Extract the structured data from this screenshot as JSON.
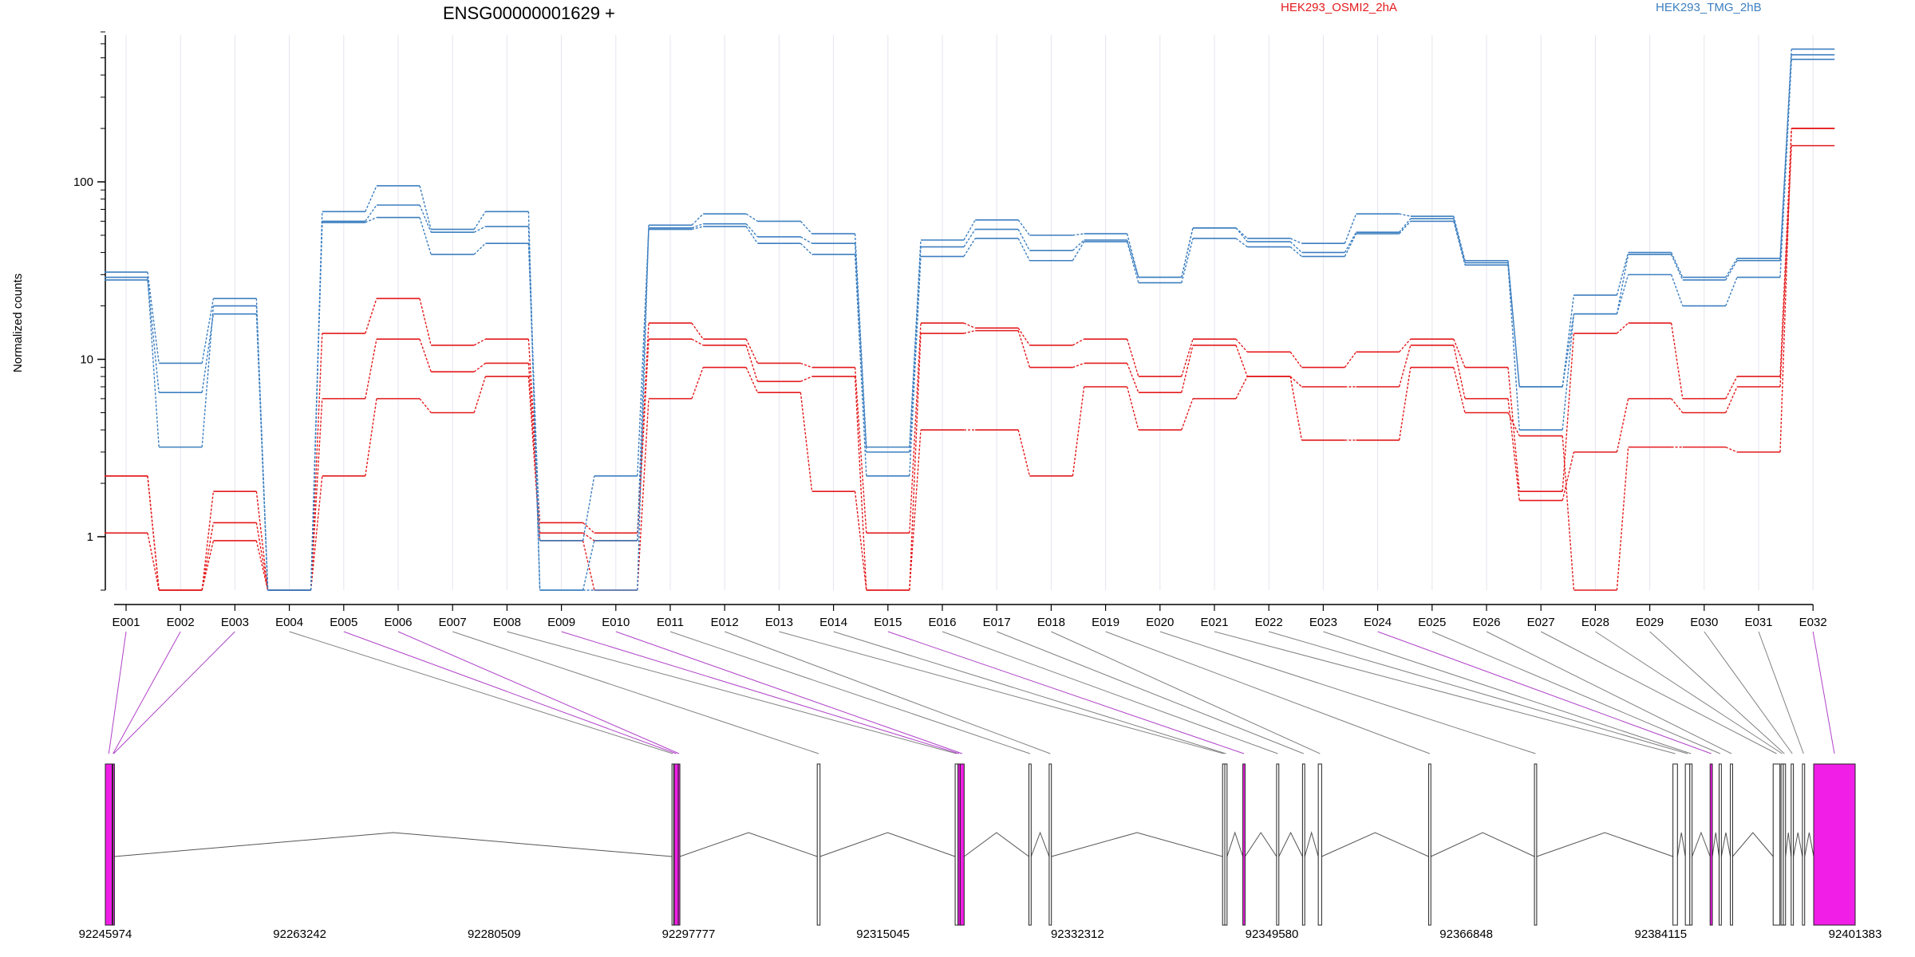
{
  "chart_data": {
    "type": "line",
    "title": "ENSG00000001629 +",
    "ylabel": "Normalized counts",
    "yscale": "log",
    "ylim": [
      0.5,
      700
    ],
    "yticks": [
      1,
      10,
      100
    ],
    "ytick_labels": [
      "1",
      "10",
      "100"
    ],
    "legend": [
      {
        "label": "HEK293_OSMI2_2hA",
        "color": "#e31a1c"
      },
      {
        "label": "HEK293_TMG_2hB",
        "color": "#3d7fc0"
      }
    ],
    "categories": [
      "E001",
      "E002",
      "E003",
      "E004",
      "E005",
      "E006",
      "E007",
      "E008",
      "E009",
      "E010",
      "E011",
      "E012",
      "E013",
      "E014",
      "E015",
      "E016",
      "E017",
      "E018",
      "E019",
      "E020",
      "E021",
      "E022",
      "E023",
      "E024",
      "E025",
      "E026",
      "E027",
      "E028",
      "E029",
      "E030",
      "E031",
      "E032"
    ],
    "series": [
      {
        "group": "HEK293_OSMI2_2hA",
        "color": "#e31a1c",
        "values": [
          2.2,
          0.5,
          1.8,
          0.5,
          14,
          22,
          12,
          13,
          1.2,
          1.05,
          16,
          13,
          9.5,
          9,
          1.05,
          16,
          15,
          12,
          13,
          8,
          13,
          11,
          9,
          11,
          13,
          9,
          1.8,
          14,
          16,
          6,
          8,
          200
        ]
      },
      {
        "group": "HEK293_OSMI2_2hA",
        "color": "#e31a1c",
        "values": [
          1.05,
          0.5,
          1.2,
          0.5,
          6,
          13,
          8.5,
          9.5,
          1.05,
          0.95,
          13,
          12,
          7.5,
          8,
          0.5,
          14,
          14.5,
          9,
          9.5,
          6.5,
          12,
          8,
          7,
          7,
          12,
          6,
          1.6,
          3,
          6,
          5,
          7,
          160
        ]
      },
      {
        "group": "HEK293_OSMI2_2hA",
        "color": "#e31a1c",
        "values": [
          2.2,
          0.5,
          0.95,
          0.5,
          2.2,
          6,
          5,
          8,
          0.95,
          0.5,
          6,
          9,
          6.5,
          1.8,
          0.5,
          4,
          4,
          2.2,
          7,
          4,
          6,
          8,
          3.5,
          3.5,
          9,
          5,
          3.7,
          0.5,
          3.2,
          3.2,
          3,
          200
        ]
      },
      {
        "group": "HEK293_TMG_2hB",
        "color": "#3d7fc0",
        "values": [
          31,
          9.5,
          22,
          0.5,
          68,
          95,
          54,
          68,
          0.5,
          0.5,
          57,
          66,
          60,
          51,
          3.2,
          47,
          61,
          50,
          51,
          29,
          55,
          48,
          45,
          66,
          64,
          36,
          7,
          23,
          40,
          29,
          37,
          560
        ]
      },
      {
        "group": "HEK293_TMG_2hB",
        "color": "#3d7fc0",
        "values": [
          29,
          3.2,
          20,
          0.5,
          60,
          74,
          52,
          56,
          0.5,
          0.95,
          55,
          58,
          49,
          45,
          3,
          43,
          54,
          41,
          47,
          29,
          55,
          46,
          40,
          52,
          62,
          35,
          7,
          18,
          39,
          28,
          36,
          520
        ]
      },
      {
        "group": "HEK293_TMG_2hB",
        "color": "#3d7fc0",
        "values": [
          28,
          6.5,
          18,
          0.5,
          59,
          63,
          39,
          45,
          0.95,
          2.2,
          54,
          56,
          45,
          39,
          2.2,
          38,
          48,
          36,
          46,
          27,
          48,
          43,
          38,
          51,
          60,
          34,
          4,
          18,
          30,
          20,
          29,
          490
        ]
      }
    ],
    "genomic_axis": {
      "tick_labels": [
        "92245974",
        "92263242",
        "92280509",
        "92297777",
        "92315045",
        "92332312",
        "92349580",
        "92366848",
        "92384115",
        "92401383"
      ]
    },
    "exon_colors": {
      "highlighted": "#f01ee6",
      "normal": "#ffffff",
      "highlight_connector": "#b043c8",
      "normal_connector": "#808080"
    },
    "exons": [
      {
        "id": "E001",
        "start": 92245974,
        "end": 92246590,
        "highlight": true
      },
      {
        "id": "E002",
        "start": 92246590,
        "end": 92246640,
        "highlight": true
      },
      {
        "id": "E003",
        "start": 92246640,
        "end": 92246690,
        "highlight": true
      },
      {
        "id": "E004",
        "start": 92296300,
        "end": 92296450,
        "highlight": false
      },
      {
        "id": "E005",
        "start": 92296500,
        "end": 92296860,
        "highlight": true
      },
      {
        "id": "E006",
        "start": 92296860,
        "end": 92296900,
        "highlight": true
      },
      {
        "id": "E007",
        "start": 92309200,
        "end": 92309450,
        "highlight": false
      },
      {
        "id": "E008",
        "start": 92321450,
        "end": 92321700,
        "highlight": false
      },
      {
        "id": "E009",
        "start": 92321700,
        "end": 92321900,
        "highlight": true
      },
      {
        "id": "E010",
        "start": 92321900,
        "end": 92322250,
        "highlight": true
      },
      {
        "id": "E011",
        "start": 92328000,
        "end": 92328200,
        "highlight": false
      },
      {
        "id": "E012",
        "start": 92329800,
        "end": 92330000,
        "highlight": false
      },
      {
        "id": "E013",
        "start": 92345200,
        "end": 92345400,
        "highlight": false
      },
      {
        "id": "E014",
        "start": 92345400,
        "end": 92345600,
        "highlight": false
      },
      {
        "id": "E015",
        "start": 92347000,
        "end": 92347200,
        "highlight": true
      },
      {
        "id": "E016",
        "start": 92350000,
        "end": 92350200,
        "highlight": false
      },
      {
        "id": "E017",
        "start": 92352300,
        "end": 92352500,
        "highlight": false
      },
      {
        "id": "E018",
        "start": 92353700,
        "end": 92354000,
        "highlight": false
      },
      {
        "id": "E019",
        "start": 92363500,
        "end": 92363700,
        "highlight": false
      },
      {
        "id": "E020",
        "start": 92372900,
        "end": 92373100,
        "highlight": false
      },
      {
        "id": "E021",
        "start": 92385200,
        "end": 92385600,
        "highlight": false
      },
      {
        "id": "E022",
        "start": 92386300,
        "end": 92386700,
        "highlight": false
      },
      {
        "id": "E023",
        "start": 92386700,
        "end": 92386900,
        "highlight": false
      },
      {
        "id": "E024",
        "start": 92388500,
        "end": 92388700,
        "highlight": true
      },
      {
        "id": "E025",
        "start": 92389300,
        "end": 92389500,
        "highlight": false
      },
      {
        "id": "E026",
        "start": 92390300,
        "end": 92390500,
        "highlight": false
      },
      {
        "id": "E027",
        "start": 92394100,
        "end": 92394700,
        "highlight": false
      },
      {
        "id": "E028",
        "start": 92394800,
        "end": 92395000,
        "highlight": false
      },
      {
        "id": "E029",
        "start": 92395000,
        "end": 92395200,
        "highlight": false
      },
      {
        "id": "E030",
        "start": 92395700,
        "end": 92395900,
        "highlight": false
      },
      {
        "id": "E031",
        "start": 92396700,
        "end": 92396900,
        "highlight": false
      },
      {
        "id": "E032",
        "start": 92397700,
        "end": 92401383,
        "highlight": true
      }
    ]
  }
}
